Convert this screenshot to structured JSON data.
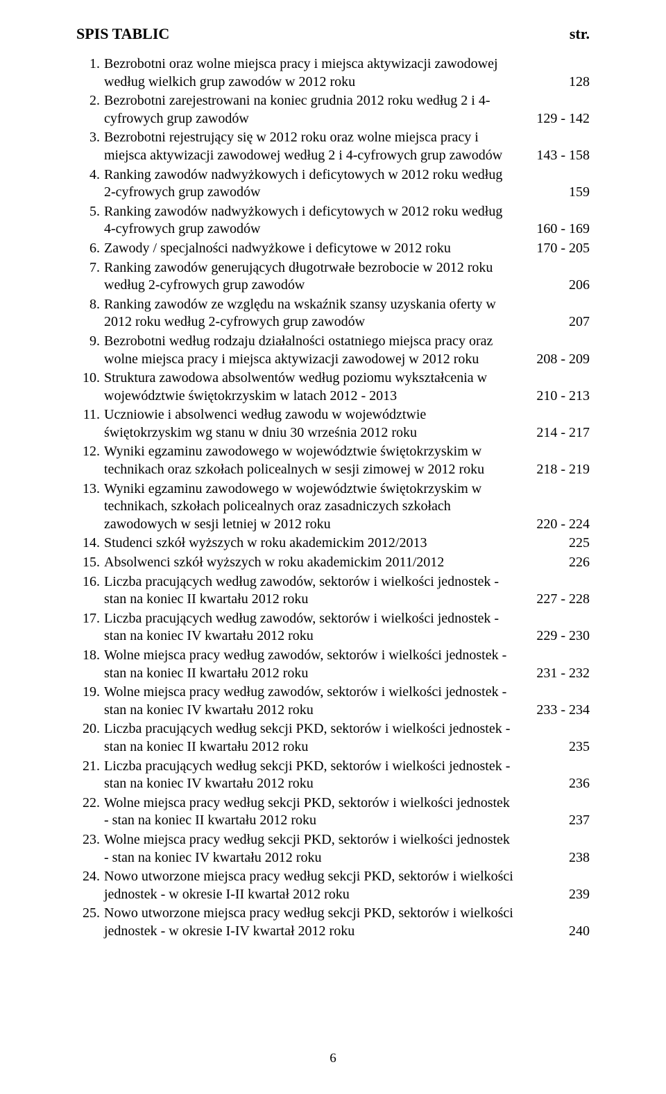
{
  "title": "SPIS TABLIC",
  "titleRight": "str.",
  "footer": "6",
  "entries": [
    {
      "num": "1.",
      "text": "Bezrobotni oraz wolne miejsca pracy i miejsca aktywizacji zawodowej według wielkich grup zawodów w 2012 roku",
      "page": "128"
    },
    {
      "num": "2.",
      "text": "Bezrobotni zarejestrowani na koniec grudnia 2012 roku według 2 i 4-cyfrowych grup zawodów",
      "page": "129 - 142"
    },
    {
      "num": "3.",
      "text": "Bezrobotni rejestrujący się w 2012 roku oraz wolne miejsca pracy i miejsca aktywizacji zawodowej według 2 i 4-cyfrowych grup zawodów",
      "page": "143 - 158"
    },
    {
      "num": "4.",
      "text": "Ranking zawodów nadwyżkowych i deficytowych w 2012 roku według 2-cyfrowych grup zawodów",
      "page": "159"
    },
    {
      "num": "5.",
      "text": "Ranking zawodów nadwyżkowych i deficytowych w 2012 roku według 4-cyfrowych grup zawodów",
      "page": "160 - 169"
    },
    {
      "num": "6.",
      "text": "Zawody / specjalności nadwyżkowe i deficytowe w 2012 roku",
      "page": "170 - 205"
    },
    {
      "num": "7.",
      "text": "Ranking zawodów generujących długotrwałe bezrobocie w 2012 roku według 2-cyfrowych grup zawodów",
      "page": "206"
    },
    {
      "num": "8.",
      "text": "Ranking zawodów ze względu na wskaźnik szansy uzyskania oferty w 2012 roku według 2-cyfrowych grup zawodów",
      "page": "207"
    },
    {
      "num": "9.",
      "text": "Bezrobotni według rodzaju działalności ostatniego miejsca pracy oraz wolne miejsca pracy i miejsca aktywizacji zawodowej w 2012 roku",
      "page": "208 - 209"
    },
    {
      "num": "10.",
      "text": "Struktura zawodowa absolwentów według poziomu wykształcenia w województwie świętokrzyskim w latach 2012 - 2013",
      "page": "210 - 213"
    },
    {
      "num": "11.",
      "text": "Uczniowie i absolwenci według zawodu w województwie świętokrzyskim wg stanu w dniu 30 września 2012 roku",
      "page": "214 - 217"
    },
    {
      "num": "12.",
      "text": "Wyniki egzaminu zawodowego w województwie świętokrzyskim w technikach oraz szkołach policealnych w sesji zimowej w 2012 roku",
      "page": "218 - 219"
    },
    {
      "num": "13.",
      "text": "Wyniki egzaminu zawodowego w województwie świętokrzyskim w technikach, szkołach policealnych oraz zasadniczych szkołach zawodowych w sesji letniej w 2012 roku",
      "page": "220 - 224"
    },
    {
      "num": "14.",
      "text": "Studenci szkół wyższych w roku akademickim 2012/2013",
      "page": "225"
    },
    {
      "num": "15.",
      "text": "Absolwenci szkół wyższych w roku akademickim 2011/2012",
      "page": "226"
    },
    {
      "num": "16.",
      "text": "Liczba pracujących według zawodów, sektorów i wielkości jednostek - stan na koniec II kwartału 2012 roku",
      "page": "227 - 228"
    },
    {
      "num": "17.",
      "text": "Liczba pracujących według zawodów, sektorów i wielkości jednostek - stan na koniec IV kwartału 2012 roku",
      "page": "229 - 230"
    },
    {
      "num": "18.",
      "text": "Wolne miejsca pracy według zawodów, sektorów i wielkości jednostek - stan na koniec II kwartału 2012 roku",
      "page": "231 - 232"
    },
    {
      "num": "19.",
      "text": "Wolne miejsca pracy według zawodów, sektorów i wielkości jednostek - stan na koniec IV kwartału 2012 roku",
      "page": "233 - 234"
    },
    {
      "num": "20.",
      "text": "Liczba pracujących według sekcji PKD, sektorów i wielkości jednostek - stan na koniec II kwartału 2012 roku",
      "page": "235"
    },
    {
      "num": "21.",
      "text": "Liczba pracujących według sekcji PKD, sektorów i wielkości jednostek - stan na koniec IV kwartału 2012 roku",
      "page": "236"
    },
    {
      "num": "22.",
      "text": "Wolne miejsca pracy według sekcji PKD, sektorów i wielkości jednostek - stan na koniec II kwartału 2012 roku",
      "page": "237"
    },
    {
      "num": "23.",
      "text": "Wolne miejsca pracy według sekcji PKD, sektorów i wielkości jednostek - stan na koniec IV kwartału 2012 roku",
      "page": "238"
    },
    {
      "num": "24.",
      "text": "Nowo utworzone miejsca pracy według sekcji PKD, sektorów i wielkości jednostek - w okresie I-II kwartał 2012 roku",
      "page": "239"
    },
    {
      "num": "25.",
      "text": "Nowo utworzone miejsca pracy według sekcji PKD, sektorów i wielkości jednostek - w okresie I-IV kwartał 2012 roku",
      "page": "240"
    }
  ]
}
